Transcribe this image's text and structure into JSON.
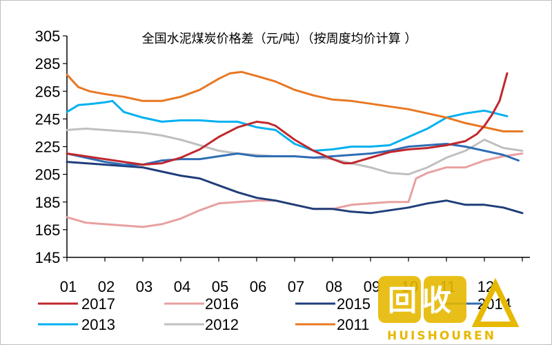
{
  "chart_data": {
    "type": "line",
    "title": "全国水泥煤炭价格差（元/吨）（按周度均价计算 ）",
    "xlabel": "",
    "ylabel": "",
    "x_tick_labels": [
      "01",
      "02",
      "03",
      "04",
      "05",
      "06",
      "07",
      "08",
      "09",
      "10",
      "11",
      "12"
    ],
    "y_tick_labels": [
      "305",
      "285",
      "265",
      "245",
      "225",
      "205",
      "185",
      "165",
      "145"
    ],
    "ylim": [
      145,
      305
    ],
    "xlim": [
      1,
      13.2
    ],
    "grid": false,
    "legend_position": "bottom",
    "series": [
      {
        "name": "2017",
        "color": "#c0272d",
        "x": [
          1,
          1.5,
          2,
          2.5,
          3,
          3.5,
          4,
          4.5,
          5,
          5.5,
          6,
          6.3,
          6.5,
          7,
          7.5,
          8,
          8.3,
          8.5,
          9,
          9.5,
          10,
          10.5,
          11,
          11.5,
          11.8,
          12,
          12.2,
          12.4,
          12.6
        ],
        "y": [
          220,
          218,
          216,
          214,
          212,
          213,
          217,
          223,
          232,
          239,
          243,
          242,
          240,
          230,
          222,
          216,
          213,
          213,
          217,
          221,
          223,
          224,
          226,
          229,
          234,
          240,
          248,
          258,
          278
        ]
      },
      {
        "name": "2016",
        "color": "#e8a0a0",
        "x": [
          1,
          1.5,
          2,
          2.5,
          3,
          3.5,
          4,
          4.5,
          5,
          5.5,
          6,
          6.5,
          7,
          7.5,
          8,
          8.5,
          9,
          9.5,
          10,
          10.2,
          10.5,
          11,
          11.5,
          12,
          12.5,
          13
        ],
        "y": [
          174,
          170,
          169,
          168,
          167,
          169,
          173,
          179,
          184,
          185,
          186,
          186,
          183,
          180,
          180,
          183,
          184,
          185,
          185,
          202,
          206,
          210,
          210,
          215,
          218,
          220
        ]
      },
      {
        "name": "2015",
        "color": "#1f3d7a",
        "x": [
          1,
          1.5,
          2,
          2.5,
          3,
          3.5,
          4,
          4.5,
          5,
          5.5,
          6,
          6.5,
          7,
          7.5,
          8,
          8.5,
          9,
          9.5,
          10,
          10.5,
          11,
          11.5,
          12,
          12.5,
          13
        ],
        "y": [
          214,
          213,
          212,
          211,
          210,
          207,
          204,
          202,
          197,
          192,
          188,
          186,
          183,
          180,
          180,
          178,
          177,
          179,
          181,
          184,
          186,
          183,
          183,
          181,
          177
        ]
      },
      {
        "name": "2014",
        "color": "#2e6db4",
        "x": [
          1,
          1.5,
          2,
          2.5,
          3,
          3.5,
          4,
          4.5,
          5,
          5.5,
          6,
          6.5,
          7,
          7.5,
          8,
          8.5,
          9,
          9.5,
          10,
          10.5,
          11,
          11.5,
          12,
          12.5,
          12.9
        ],
        "y": [
          220,
          217,
          214,
          212,
          212,
          215,
          216,
          216,
          218,
          220,
          218,
          218,
          218,
          217,
          218,
          219,
          220,
          222,
          225,
          226,
          227,
          225,
          222,
          219,
          215
        ]
      },
      {
        "name": "2013",
        "color": "#00b0f0",
        "x": [
          1,
          1.3,
          1.7,
          2,
          2.2,
          2.5,
          3,
          3.5,
          4,
          4.5,
          5,
          5.5,
          6,
          6.5,
          7,
          7.5,
          8,
          8.5,
          9,
          9.5,
          10,
          10.5,
          11,
          11.5,
          12,
          12.3,
          12.6
        ],
        "y": [
          250,
          255,
          256,
          257,
          258,
          250,
          246,
          243,
          244,
          244,
          243,
          243,
          239,
          237,
          227,
          222,
          223,
          225,
          225,
          226,
          232,
          238,
          246,
          249,
          251,
          249,
          247
        ]
      },
      {
        "name": "2012",
        "color": "#bfbfbf",
        "x": [
          1,
          1.5,
          2,
          2.5,
          3,
          3.5,
          4,
          4.5,
          5,
          5.5,
          6,
          6.5,
          7,
          7.5,
          8,
          8.5,
          9,
          9.5,
          10,
          10.5,
          11,
          11.5,
          12,
          12.5,
          13
        ],
        "y": [
          237,
          238,
          237,
          236,
          235,
          233,
          230,
          226,
          222,
          220,
          219,
          218,
          218,
          217,
          216,
          213,
          210,
          206,
          205,
          210,
          217,
          222,
          230,
          224,
          222
        ]
      },
      {
        "name": "2011",
        "color": "#e87722",
        "x": [
          1,
          1.3,
          1.6,
          2,
          2.5,
          3,
          3.5,
          4,
          4.5,
          5,
          5.3,
          5.6,
          6,
          6.5,
          7,
          7.5,
          8,
          8.5,
          9,
          9.5,
          10,
          10.5,
          11,
          11.5,
          12,
          12.5,
          13
        ],
        "y": [
          277,
          268,
          265,
          263,
          261,
          258,
          258,
          261,
          266,
          274,
          278,
          279,
          276,
          272,
          266,
          262,
          259,
          258,
          256,
          254,
          252,
          249,
          246,
          242,
          239,
          236,
          236
        ]
      }
    ]
  },
  "watermark": {
    "glyphs": "回收",
    "text": "HUISHOUREN"
  }
}
